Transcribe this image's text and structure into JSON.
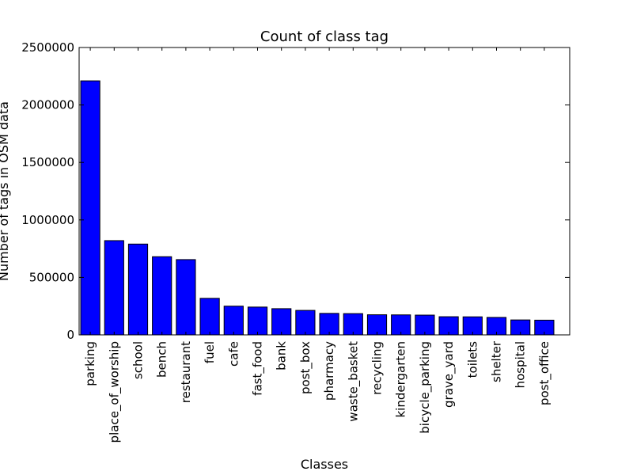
{
  "chart_data": {
    "type": "bar",
    "title": "Count of class tag",
    "xlabel": "Classes",
    "ylabel": "Number of tags in OSM data",
    "ylim": [
      0,
      2500000
    ],
    "yticks": [
      "0",
      "500000",
      "1000000",
      "1500000",
      "2000000",
      "2500000"
    ],
    "grid": false,
    "bar_color": "#0000ff",
    "categories": [
      "parking",
      "place_of_worship",
      "school",
      "bench",
      "restaurant",
      "fuel",
      "cafe",
      "fast_food",
      "bank",
      "post_box",
      "pharmacy",
      "waste_basket",
      "recycling",
      "kindergarten",
      "bicycle_parking",
      "grave_yard",
      "toilets",
      "shelter",
      "hospital",
      "post_office"
    ],
    "values": [
      2210000,
      820000,
      790000,
      680000,
      655000,
      318000,
      250000,
      242000,
      228000,
      213000,
      187000,
      185000,
      175000,
      174000,
      172000,
      158000,
      157000,
      152000,
      130000,
      128000
    ]
  }
}
